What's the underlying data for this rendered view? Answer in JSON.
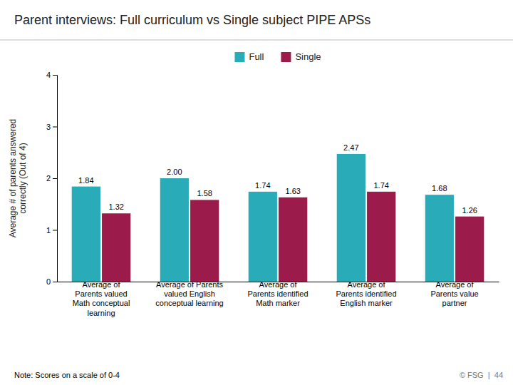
{
  "chart_data": {
    "type": "bar",
    "title": "Parent interviews: Full curriculum vs Single subject PIPE APSs",
    "categories": [
      "Average of\nParents valued\nMath conceptual\nlearning",
      "Average of Parents\nvalued English\nconceptual learning",
      "Average of\nParents identified\nMath marker",
      "Average of\nParents identified\nEnglish marker",
      "Average of\nParents value\npartner"
    ],
    "series": [
      {
        "name": "Full",
        "color": "#29ABB8",
        "values": [
          1.84,
          2.0,
          1.74,
          2.47,
          1.68
        ],
        "value_labels": [
          "1.84",
          "2.00",
          "1.74",
          "2.47",
          "1.68"
        ]
      },
      {
        "name": "Single",
        "color": "#9B1B4B",
        "values": [
          1.32,
          1.58,
          1.63,
          1.74,
          1.26
        ],
        "value_labels": [
          "1.32",
          "1.58",
          "1.63",
          "1.74",
          "1.26"
        ]
      }
    ],
    "y_label": "Average # of parents answered\ncorrectly (Out of 4)",
    "ylim": [
      0,
      4
    ],
    "yticks": [
      0,
      1,
      2,
      3,
      4
    ],
    "grid": false,
    "legend": "top",
    "data_labels": true,
    "annotations": [
      "Note: Scores on a scale of 0-4",
      "© FSG  |  44"
    ]
  }
}
